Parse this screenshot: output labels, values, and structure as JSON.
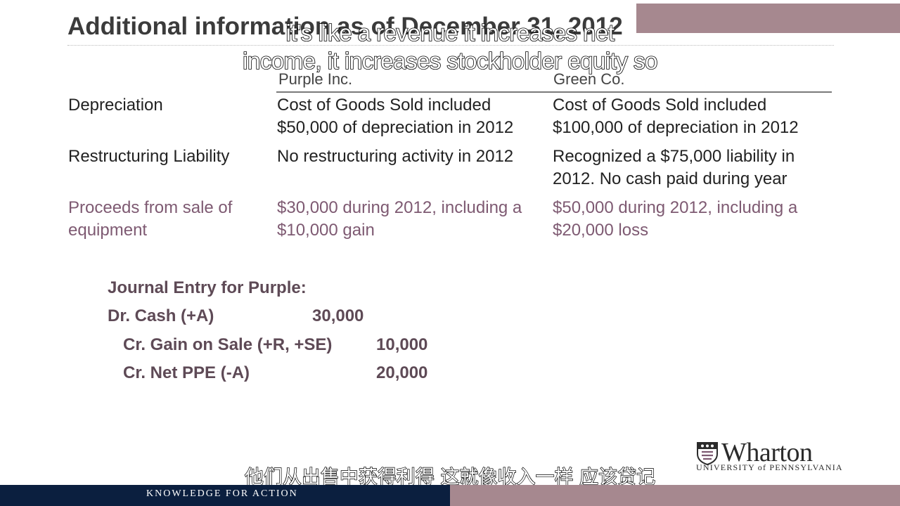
{
  "slide": {
    "title": "Additional information as of December 31, 2012"
  },
  "captions": {
    "english_line1": "it's like a revenue it increases net",
    "english_line2": "income, it increases stockholder equity so",
    "chinese": "他们从出售中获得利得 这就像收入一样 应该贷记"
  },
  "table": {
    "columns": [
      "Purple Inc.",
      "Green Co."
    ],
    "rows": [
      {
        "label": "Depreciation",
        "purple": [
          "Cost of Goods Sold included",
          "$50,000 of depreciation in 2012"
        ],
        "green": [
          "Cost of Goods Sold included",
          "$100,000 of depreciation in 2012"
        ]
      },
      {
        "label": "Restructuring Liability",
        "purple": [
          "No restructuring activity in 2012"
        ],
        "green": [
          "Recognized a $75,000 liability in",
          "2012.  No cash paid during year"
        ]
      },
      {
        "label": [
          "Proceeds from sale of",
          "equipment"
        ],
        "purple": [
          "$30,000 during 2012, including a",
          "$10,000 gain"
        ],
        "green": [
          "$50,000 during 2012, including a",
          "$20,000 loss"
        ]
      }
    ]
  },
  "journal": {
    "heading": "Journal Entry for Purple:",
    "lines": [
      {
        "account": "Dr. Cash (+A)",
        "amount": "30,000"
      },
      {
        "account": "Cr. Gain on Sale (+R, +SE)",
        "amount": "10,000"
      },
      {
        "account": "Cr. Net PPE (-A)",
        "amount": "20,000"
      }
    ]
  },
  "branding": {
    "logo_word": "Wharton",
    "logo_sub": "UNIVERSITY of PENNSYLVANIA",
    "footer": "KNOWLEDGE FOR ACTION"
  },
  "colors": {
    "accent_mauve": "#a6888f",
    "footer_navy": "#0b1f3f",
    "highlight_text": "#7e5a72"
  }
}
